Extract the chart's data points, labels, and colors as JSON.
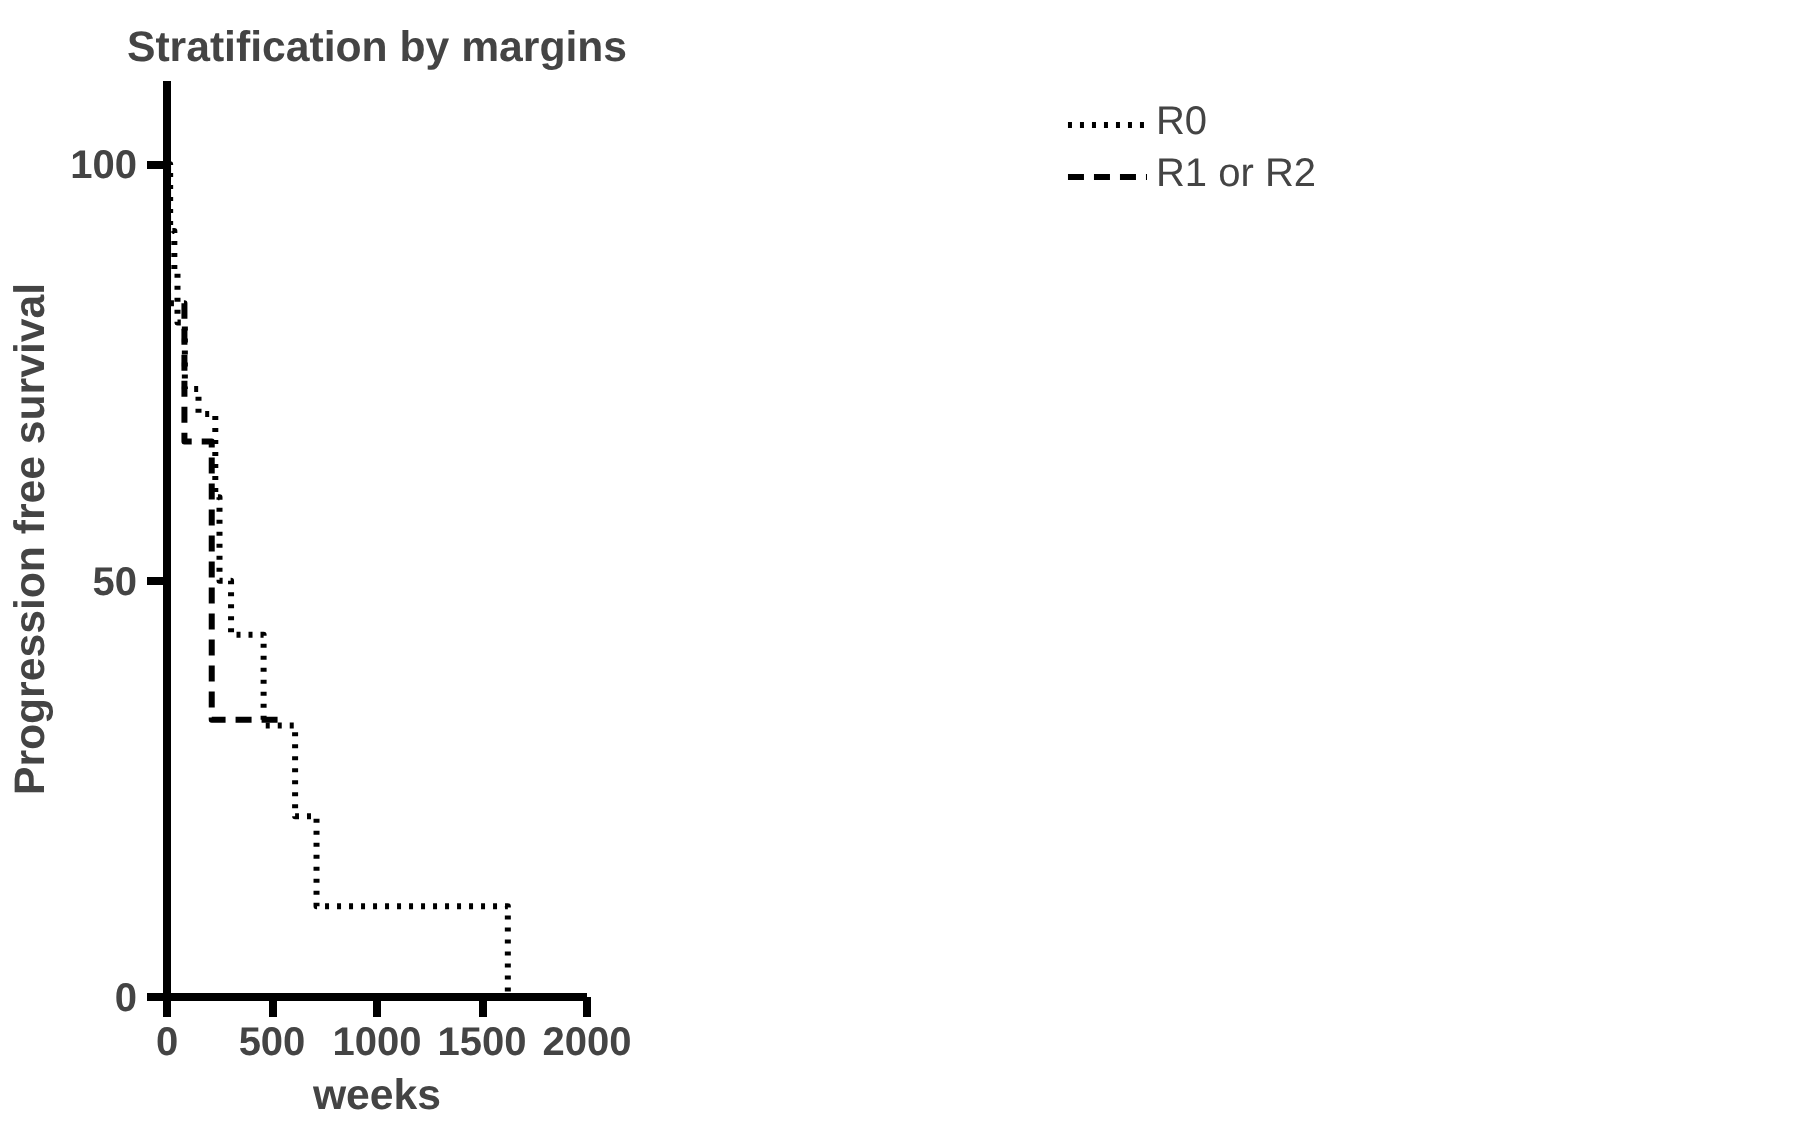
{
  "chart_data": {
    "type": "step",
    "title": "Stratification by margins",
    "xlabel": "weeks",
    "ylabel": "Progression free survival",
    "xlim": [
      0,
      2000
    ],
    "xticks": [
      0,
      500,
      1000,
      1500,
      2000
    ],
    "ylim": [
      0,
      110
    ],
    "yticks": [
      0,
      50,
      100
    ],
    "grid": false,
    "legend": "top right",
    "series": [
      {
        "name": "R0",
        "color": "#000000",
        "line_style": "dotted",
        "x": [
          0,
          15,
          35,
          50,
          85,
          150,
          230,
          250,
          305,
          460,
          610,
          712,
          1623
        ],
        "values": [
          100,
          92,
          87,
          81,
          73,
          70,
          60,
          50,
          43.5,
          32.6,
          21.7,
          10.9,
          0
        ]
      },
      {
        "name": "R1 or R2",
        "color": "#000000",
        "line_style": "dashed",
        "x": [
          0,
          5,
          83,
          213,
          560
        ],
        "values": [
          100,
          83.3,
          66.7,
          33.3,
          33.3
        ]
      }
    ]
  }
}
